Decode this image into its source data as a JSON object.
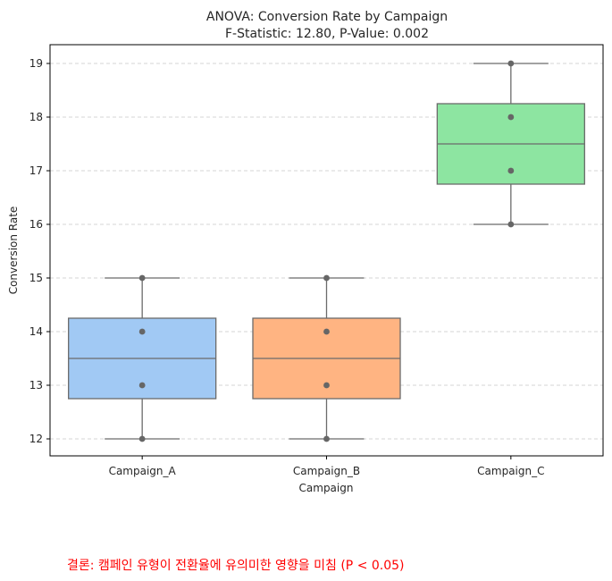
{
  "chart_data": {
    "type": "box",
    "title": "ANOVA: Conversion Rate by Campaign",
    "subtitle": "F-Statistic: 12.80, P-Value: 0.002",
    "xlabel": "Campaign",
    "ylabel": "Conversion Rate",
    "categories": [
      "Campaign_A",
      "Campaign_B",
      "Campaign_C"
    ],
    "yticks": [
      12,
      13,
      14,
      15,
      16,
      17,
      18,
      19
    ],
    "ylim": [
      11.65,
      19.35
    ],
    "grid": {
      "y": true,
      "style": "dashed"
    },
    "boxes": [
      {
        "category": "Campaign_A",
        "min": 12,
        "q1": 12.75,
        "median": 13.5,
        "q3": 14.25,
        "max": 15,
        "points": [
          12,
          13,
          14,
          15
        ],
        "color": "#a1c9f4"
      },
      {
        "category": "Campaign_B",
        "min": 12,
        "q1": 12.75,
        "median": 13.5,
        "q3": 14.25,
        "max": 15,
        "points": [
          12,
          13,
          14,
          15
        ],
        "color": "#ffb482"
      },
      {
        "category": "Campaign_C",
        "min": 16,
        "q1": 16.75,
        "median": 17.5,
        "q3": 18.25,
        "max": 19,
        "points": [
          16,
          17,
          18,
          19
        ],
        "color": "#8de5a1"
      }
    ],
    "annotation": {
      "text": "결론: 캠페인 유형이 전환율에 유의미한 영향을 미침 (P < 0.05)",
      "color": "#ff0000"
    }
  },
  "style": {
    "edge_color": "#6b6b6b",
    "point_color": "#666666",
    "grid_color": "#c8c8c8"
  }
}
